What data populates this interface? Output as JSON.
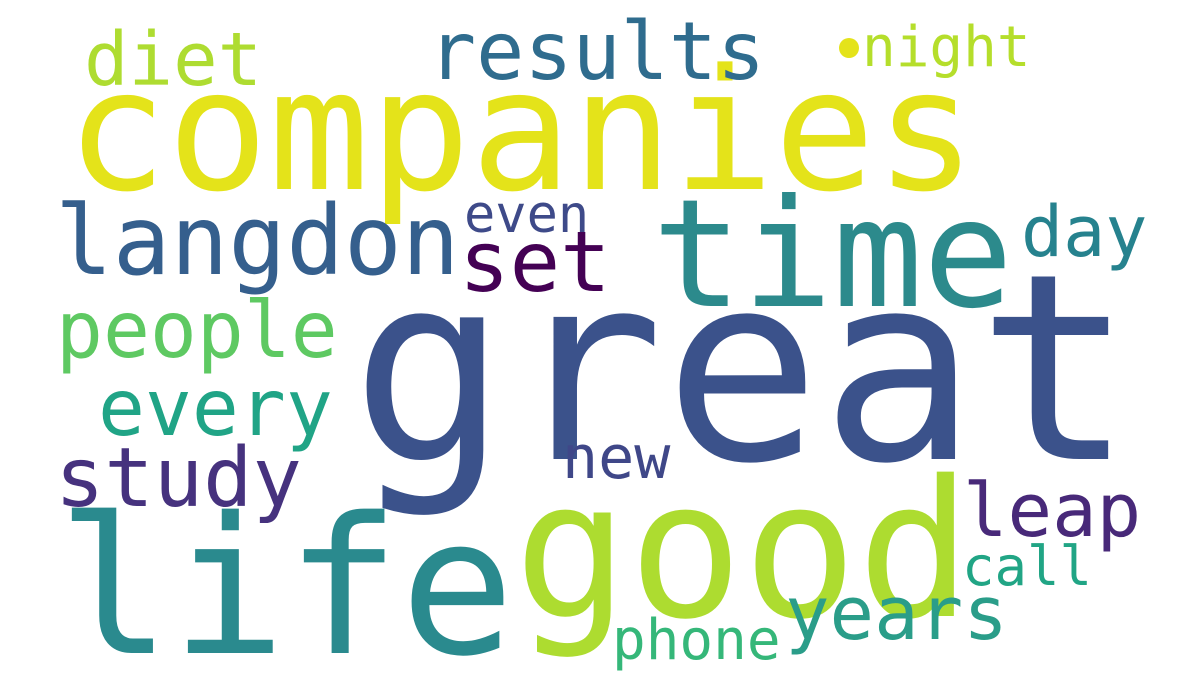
{
  "words": [
    {
      "key": "companies",
      "text": "companies",
      "color": "#E4E31A"
    },
    {
      "key": "great",
      "text": "great",
      "color": "#3B528B"
    },
    {
      "key": "time",
      "text": "time",
      "color": "#2C8A8C"
    },
    {
      "key": "life",
      "text": "life",
      "color": "#2A8A8E"
    },
    {
      "key": "good",
      "text": "good",
      "color": "#ADDC30"
    },
    {
      "key": "langdon",
      "text": "langdon",
      "color": "#355F8D"
    },
    {
      "key": "results",
      "text": "results",
      "color": "#2F6C8E"
    },
    {
      "key": "diet",
      "text": "diet",
      "color": "#AEDC31"
    },
    {
      "key": "night",
      "text": "night",
      "color": "#B5DE2B"
    },
    {
      "key": "set",
      "text": "set",
      "color": "#440154"
    },
    {
      "key": "even",
      "text": "even",
      "color": "#3E4A89"
    },
    {
      "key": "day",
      "text": "day",
      "color": "#26828E"
    },
    {
      "key": "people",
      "text": "people",
      "color": "#5EC962"
    },
    {
      "key": "every",
      "text": "every",
      "color": "#20A486"
    },
    {
      "key": "study",
      "text": "study",
      "color": "#46327E"
    },
    {
      "key": "new",
      "text": "new",
      "color": "#3F4788"
    },
    {
      "key": "leap",
      "text": "leap",
      "color": "#482979"
    },
    {
      "key": "call",
      "text": "call",
      "color": "#21A585"
    },
    {
      "key": "years",
      "text": "years",
      "color": "#2A9D89"
    },
    {
      "key": "phone",
      "text": "phone",
      "color": "#35B779"
    }
  ]
}
